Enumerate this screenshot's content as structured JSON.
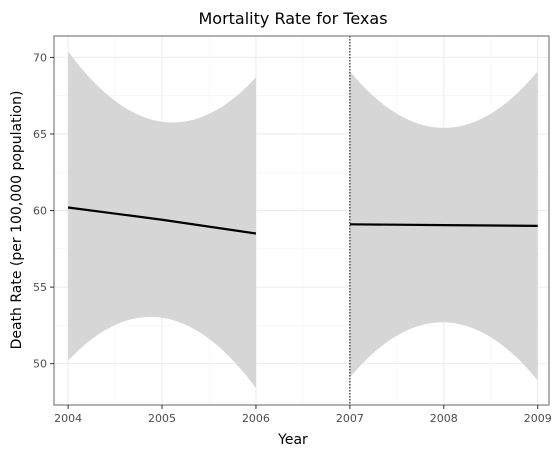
{
  "chart_data": {
    "type": "line",
    "title": "Mortality Rate for Texas",
    "xlabel": "Year",
    "ylabel": "Death Rate (per 100,000 population)",
    "xlim": [
      2003.85,
      2009.12
    ],
    "ylim": [
      47.3,
      71.4
    ],
    "x_ticks": [
      2004,
      2005,
      2006,
      2007,
      2008,
      2009
    ],
    "y_ticks": [
      50,
      55,
      60,
      65,
      70
    ],
    "grid": true,
    "reference_line": {
      "x": 2007,
      "style": "dotted"
    },
    "series": [
      {
        "x": [
          2004,
          2005,
          2006
        ],
        "fit": [
          60.2,
          59.4,
          58.5
        ],
        "lower": [
          50.2,
          53.0,
          48.4
        ],
        "upper": [
          70.4,
          65.8,
          68.7
        ]
      },
      {
        "x": [
          2007,
          2008,
          2009
        ],
        "fit": [
          59.1,
          59.05,
          59.0
        ],
        "lower": [
          49.1,
          52.7,
          48.9
        ],
        "upper": [
          69.1,
          65.4,
          69.1
        ]
      }
    ]
  }
}
